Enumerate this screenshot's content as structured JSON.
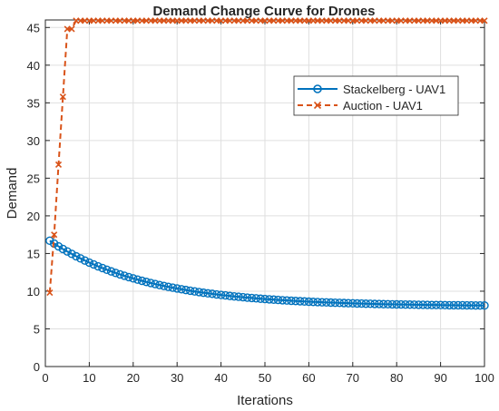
{
  "chart_data": {
    "type": "line",
    "title": "Demand Change Curve for Drones",
    "xlabel": "Iterations",
    "ylabel": "Demand",
    "xlim": [
      0,
      100
    ],
    "ylim": [
      0,
      46
    ],
    "xticks": [
      0,
      10,
      20,
      30,
      40,
      50,
      60,
      70,
      80,
      90,
      100
    ],
    "yticks": [
      0,
      5,
      10,
      15,
      20,
      25,
      30,
      35,
      40,
      45
    ],
    "grid": true,
    "legend_position": "upper-right",
    "series": [
      {
        "name": "Stackelberg - UAV1",
        "color": "#0072BD",
        "line_style": "solid",
        "marker": "circle",
        "model": "exponential-decay",
        "x_start": 1,
        "x_end": 100,
        "start_value": 16.7,
        "final_value": 8.0,
        "decay_rate": 0.045
      },
      {
        "name": "Auction - UAV1",
        "color": "#D95319",
        "line_style": "dashed",
        "marker": "x",
        "x": [
          1,
          2,
          3,
          4,
          5,
          6,
          7,
          8,
          9,
          10,
          11,
          12,
          13,
          14,
          15,
          16,
          17,
          18,
          19,
          20,
          21,
          22,
          23,
          24,
          25,
          26,
          27,
          28,
          29,
          30,
          31,
          32,
          33,
          34,
          35,
          36,
          37,
          38,
          39,
          40,
          41,
          42,
          43,
          44,
          45,
          46,
          47,
          48,
          49,
          50,
          51,
          52,
          53,
          54,
          55,
          56,
          57,
          58,
          59,
          60,
          61,
          62,
          63,
          64,
          65,
          66,
          67,
          68,
          69,
          70,
          71,
          72,
          73,
          74,
          75,
          76,
          77,
          78,
          79,
          80,
          81,
          82,
          83,
          84,
          85,
          86,
          87,
          88,
          89,
          90,
          91,
          92,
          93,
          94,
          95,
          96,
          97,
          98,
          99,
          100
        ],
        "y": [
          9.8,
          17.5,
          26.8,
          35.8,
          44.8,
          44.8,
          45.9,
          45.9,
          45.9,
          45.9,
          45.9,
          45.9,
          45.9,
          45.9,
          45.9,
          45.9,
          45.9,
          45.9,
          45.9,
          45.9,
          45.9,
          45.9,
          45.9,
          45.9,
          45.9,
          45.9,
          45.9,
          45.9,
          45.9,
          45.9,
          45.9,
          45.9,
          45.9,
          45.9,
          45.9,
          45.9,
          45.9,
          45.9,
          45.9,
          45.9,
          45.9,
          45.9,
          45.9,
          45.9,
          45.9,
          45.9,
          45.9,
          45.9,
          45.9,
          45.9,
          45.9,
          45.9,
          45.9,
          45.9,
          45.9,
          45.9,
          45.9,
          45.9,
          45.9,
          45.9,
          45.9,
          45.9,
          45.9,
          45.9,
          45.9,
          45.9,
          45.9,
          45.9,
          45.9,
          45.9,
          45.9,
          45.9,
          45.9,
          45.9,
          45.9,
          45.9,
          45.9,
          45.9,
          45.9,
          45.9,
          45.9,
          45.9,
          45.9,
          45.9,
          45.9,
          45.9,
          45.9,
          45.9,
          45.9,
          45.9,
          45.9,
          45.9,
          45.9,
          45.9,
          45.9,
          45.9,
          45.9,
          45.9,
          45.9,
          45.9
        ]
      }
    ]
  }
}
